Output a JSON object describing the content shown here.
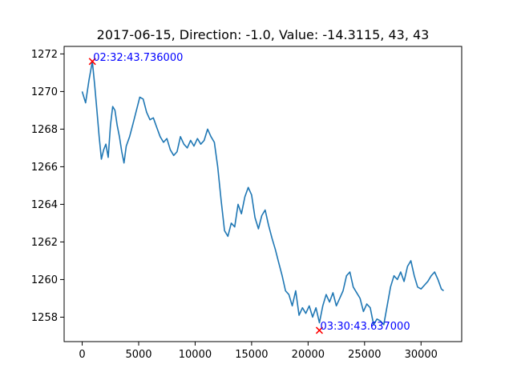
{
  "chart_data": {
    "type": "line",
    "title": "2017-06-15, Direction: -1.0, Value: -14.3115, 43, 43",
    "xlabel": "",
    "ylabel": "",
    "xlim": [
      -1600,
      33600
    ],
    "ylim": [
      1256.7,
      1272.4
    ],
    "grid": false,
    "legend": "none",
    "x_ticks": [
      0,
      5000,
      10000,
      15000,
      20000,
      25000,
      30000
    ],
    "x_tick_labels": [
      "0",
      "5000",
      "10000",
      "15000",
      "20000",
      "25000",
      "30000"
    ],
    "y_ticks": [
      1258,
      1260,
      1262,
      1264,
      1266,
      1268,
      1270,
      1272
    ],
    "y_tick_labels": [
      "1258",
      "1260",
      "1262",
      "1264",
      "1266",
      "1268",
      "1270",
      "1272"
    ],
    "series": [
      {
        "name": "",
        "color": "#1f77b4",
        "points": [
          [
            0,
            1270.0
          ],
          [
            300,
            1269.4
          ],
          [
            600,
            1270.6
          ],
          [
            900,
            1271.6
          ],
          [
            1100,
            1270.4
          ],
          [
            1300,
            1269.0
          ],
          [
            1500,
            1267.6
          ],
          [
            1700,
            1266.4
          ],
          [
            1900,
            1266.9
          ],
          [
            2100,
            1267.2
          ],
          [
            2300,
            1266.5
          ],
          [
            2500,
            1268.2
          ],
          [
            2700,
            1269.2
          ],
          [
            2900,
            1269.0
          ],
          [
            3100,
            1268.2
          ],
          [
            3300,
            1267.6
          ],
          [
            3500,
            1266.8
          ],
          [
            3700,
            1266.2
          ],
          [
            3900,
            1267.1
          ],
          [
            4200,
            1267.6
          ],
          [
            4500,
            1268.3
          ],
          [
            4800,
            1269.0
          ],
          [
            5100,
            1269.7
          ],
          [
            5400,
            1269.6
          ],
          [
            5700,
            1268.9
          ],
          [
            6000,
            1268.5
          ],
          [
            6300,
            1268.6
          ],
          [
            6600,
            1268.1
          ],
          [
            6900,
            1267.6
          ],
          [
            7200,
            1267.3
          ],
          [
            7500,
            1267.5
          ],
          [
            7800,
            1266.9
          ],
          [
            8100,
            1266.6
          ],
          [
            8400,
            1266.8
          ],
          [
            8700,
            1267.6
          ],
          [
            9000,
            1267.2
          ],
          [
            9300,
            1267.0
          ],
          [
            9600,
            1267.4
          ],
          [
            9900,
            1267.1
          ],
          [
            10200,
            1267.5
          ],
          [
            10500,
            1267.2
          ],
          [
            10800,
            1267.4
          ],
          [
            11100,
            1268.0
          ],
          [
            11400,
            1267.6
          ],
          [
            11700,
            1267.3
          ],
          [
            12000,
            1266.0
          ],
          [
            12300,
            1264.2
          ],
          [
            12600,
            1262.6
          ],
          [
            12900,
            1262.3
          ],
          [
            13200,
            1263.0
          ],
          [
            13500,
            1262.8
          ],
          [
            13800,
            1264.0
          ],
          [
            14100,
            1263.5
          ],
          [
            14400,
            1264.4
          ],
          [
            14700,
            1264.9
          ],
          [
            15000,
            1264.5
          ],
          [
            15300,
            1263.3
          ],
          [
            15600,
            1262.7
          ],
          [
            15900,
            1263.4
          ],
          [
            16200,
            1263.7
          ],
          [
            16500,
            1262.9
          ],
          [
            16800,
            1262.2
          ],
          [
            17100,
            1261.6
          ],
          [
            17400,
            1260.9
          ],
          [
            17700,
            1260.2
          ],
          [
            18000,
            1259.4
          ],
          [
            18300,
            1259.2
          ],
          [
            18600,
            1258.6
          ],
          [
            18900,
            1259.4
          ],
          [
            19200,
            1258.1
          ],
          [
            19500,
            1258.5
          ],
          [
            19800,
            1258.2
          ],
          [
            20100,
            1258.6
          ],
          [
            20400,
            1258.0
          ],
          [
            20700,
            1258.5
          ],
          [
            21000,
            1257.7
          ],
          [
            21300,
            1258.6
          ],
          [
            21600,
            1259.2
          ],
          [
            21900,
            1258.8
          ],
          [
            22200,
            1259.3
          ],
          [
            22500,
            1258.6
          ],
          [
            22800,
            1259.0
          ],
          [
            23100,
            1259.4
          ],
          [
            23400,
            1260.2
          ],
          [
            23700,
            1260.4
          ],
          [
            24000,
            1259.6
          ],
          [
            24300,
            1259.3
          ],
          [
            24600,
            1259.0
          ],
          [
            24900,
            1258.3
          ],
          [
            25200,
            1258.7
          ],
          [
            25500,
            1258.5
          ],
          [
            25800,
            1257.6
          ],
          [
            26100,
            1257.9
          ],
          [
            26400,
            1257.8
          ],
          [
            26700,
            1257.6
          ],
          [
            27000,
            1258.6
          ],
          [
            27300,
            1259.6
          ],
          [
            27600,
            1260.2
          ],
          [
            27900,
            1260.0
          ],
          [
            28200,
            1260.4
          ],
          [
            28500,
            1259.9
          ],
          [
            28800,
            1260.7
          ],
          [
            29100,
            1261.0
          ],
          [
            29400,
            1260.2
          ],
          [
            29700,
            1259.6
          ],
          [
            30000,
            1259.5
          ],
          [
            30300,
            1259.7
          ],
          [
            30600,
            1259.9
          ],
          [
            30900,
            1260.2
          ],
          [
            31200,
            1260.4
          ],
          [
            31500,
            1260.0
          ],
          [
            31800,
            1259.5
          ],
          [
            32000,
            1259.4
          ]
        ]
      }
    ],
    "markers": [
      {
        "x": 900,
        "y": 1271.6,
        "color": "#ff0000",
        "label": "02:32:43.736000",
        "label_color": "#0000ff"
      },
      {
        "x": 21000,
        "y": 1257.3,
        "color": "#ff0000",
        "label": "03:30:43.637000",
        "label_color": "#0000ff"
      }
    ]
  }
}
